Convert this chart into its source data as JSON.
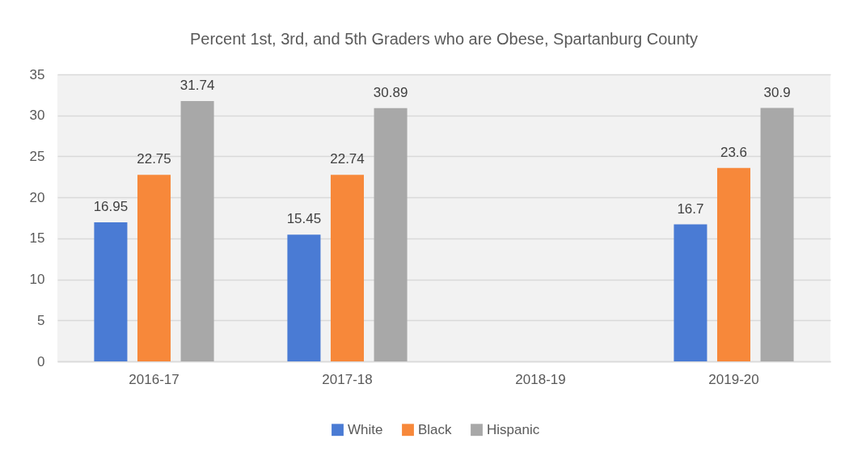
{
  "chart_data": {
    "type": "bar",
    "title": "Percent 1st, 3rd, and 5th Graders who are Obese, Spartanburg County",
    "categories": [
      "2016-17",
      "2017-18",
      "2018-19",
      "2019-20"
    ],
    "series": [
      {
        "name": "White",
        "color": "#4a7bd4",
        "values": [
          16.95,
          15.45,
          null,
          16.7
        ]
      },
      {
        "name": "Black",
        "color": "#f7883a",
        "values": [
          22.75,
          22.74,
          null,
          23.6
        ]
      },
      {
        "name": "Hispanic",
        "color": "#a8a8a8",
        "values": [
          31.74,
          30.89,
          null,
          30.9
        ]
      }
    ],
    "ylim": [
      0,
      35
    ],
    "yticks": [
      0,
      5,
      10,
      15,
      20,
      25,
      30,
      35
    ],
    "grid": "y",
    "legend": "bottom",
    "data_labels": true
  }
}
